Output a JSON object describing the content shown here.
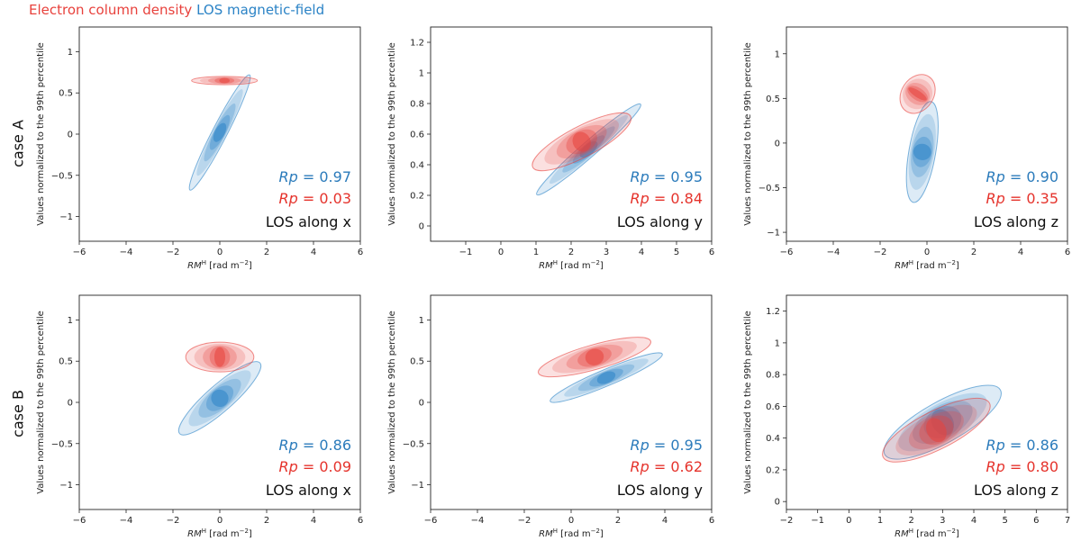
{
  "legend": {
    "electron_label": "Electron column density",
    "los_label": "LOS magnetic-field",
    "electron_color": "#e8413c",
    "los_color": "#2b83c6"
  },
  "rows": {
    "a": "case A",
    "b": "case B"
  },
  "chart_data": [
    {
      "type": "scatter",
      "id": "A-x",
      "row": "case A",
      "xlabel": "RM^H [rad m^-2]",
      "ylabel": "Values normalized to the 99th percentile",
      "xlim": [
        -6,
        6
      ],
      "ylim": [
        -1.3,
        1.3
      ],
      "xticks": [
        -6,
        -4,
        -2,
        0,
        2,
        4,
        6
      ],
      "yticks": [
        -1.0,
        -0.5,
        0.0,
        0.5,
        1.0
      ],
      "annotations": {
        "rp_blue": "Rp = 0.97",
        "rp_red": "Rp = 0.03",
        "los": "LOS along x"
      },
      "series": [
        {
          "name": "LOS magnetic-field",
          "color": "#2b83c6",
          "center": [
            0,
            0.02
          ],
          "slope": 0.55,
          "spread": 0.09,
          "length": 2.4
        },
        {
          "name": "Electron column density",
          "color": "#e8413c",
          "center": [
            0.2,
            0.65
          ],
          "slope": 0.0,
          "spread": 0.05,
          "length": 2.5
        }
      ]
    },
    {
      "type": "scatter",
      "id": "A-y",
      "row": "case A",
      "xlabel": "RM^H [rad m^-2]",
      "ylabel": "Values normalized to the 99th percentile",
      "xlim": [
        -2,
        6
      ],
      "ylim": [
        -0.1,
        1.3
      ],
      "xticks": [
        -1,
        0,
        1,
        2,
        3,
        4,
        5,
        6
      ],
      "yticks": [
        0.0,
        0.2,
        0.4,
        0.6,
        0.8,
        1.0,
        1.2
      ],
      "annotations": {
        "rp_blue": "Rp = 0.95",
        "rp_red": "Rp = 0.84",
        "los": "LOS along y"
      },
      "series": [
        {
          "name": "LOS magnetic-field",
          "color": "#2b83c6",
          "center": [
            2.5,
            0.5
          ],
          "slope": 0.2,
          "spread": 0.05,
          "length": 2.8
        },
        {
          "name": "Electron column density",
          "color": "#e8413c",
          "center": [
            2.3,
            0.55
          ],
          "slope": 0.12,
          "spread": 0.1,
          "length": 2.6
        }
      ]
    },
    {
      "type": "scatter",
      "id": "A-z",
      "row": "case A",
      "xlabel": "RM^H [rad m^-2]",
      "ylabel": "Values normalized to the 99th percentile",
      "xlim": [
        -6,
        6
      ],
      "ylim": [
        -1.1,
        1.3
      ],
      "xticks": [
        -6,
        -4,
        -2,
        0,
        2,
        4,
        6
      ],
      "yticks": [
        -1.0,
        -0.5,
        0.0,
        0.5,
        1.0
      ],
      "annotations": {
        "rp_blue": "Rp = 0.90",
        "rp_red": "Rp = 0.35",
        "los": "LOS along z"
      },
      "series": [
        {
          "name": "LOS magnetic-field",
          "color": "#2b83c6",
          "center": [
            -0.2,
            -0.1
          ],
          "slope": 1.5,
          "spread": 0.15,
          "length": 0.7
        },
        {
          "name": "Electron column density",
          "color": "#e8413c",
          "center": [
            -0.4,
            0.55
          ],
          "slope": 0.4,
          "spread": 0.18,
          "length": 0.8
        }
      ]
    },
    {
      "type": "scatter",
      "id": "B-x",
      "row": "case B",
      "xlabel": "RM^H [rad m^-2]",
      "ylabel": "Values normalized to the 99th percentile",
      "xlim": [
        -6,
        6
      ],
      "ylim": [
        -1.3,
        1.3
      ],
      "xticks": [
        -6,
        -4,
        -2,
        0,
        2,
        4,
        6
      ],
      "yticks": [
        -1.0,
        -0.5,
        0.0,
        0.5,
        1.0
      ],
      "annotations": {
        "rp_blue": "Rp = 0.86",
        "rp_red": "Rp = 0.09",
        "los": "LOS along x"
      },
      "series": [
        {
          "name": "LOS magnetic-field",
          "color": "#2b83c6",
          "center": [
            0,
            0.05
          ],
          "slope": 0.25,
          "spread": 0.16,
          "length": 3.2
        },
        {
          "name": "Electron column density",
          "color": "#e8413c",
          "center": [
            0,
            0.55
          ],
          "slope": 0.0,
          "spread": 0.18,
          "length": 2.6
        }
      ]
    },
    {
      "type": "scatter",
      "id": "B-y",
      "row": "case B",
      "xlabel": "RM^H [rad m^-2]",
      "ylabel": "Values normalized to the 99th percentile",
      "xlim": [
        -6,
        6
      ],
      "ylim": [
        -1.3,
        1.3
      ],
      "xticks": [
        -6,
        -4,
        -2,
        0,
        2,
        4,
        6
      ],
      "yticks": [
        -1.0,
        -0.5,
        0.0,
        0.5,
        1.0
      ],
      "annotations": {
        "rp_blue": "Rp = 0.95",
        "rp_red": "Rp = 0.62",
        "los": "LOS along y"
      },
      "series": [
        {
          "name": "LOS magnetic-field",
          "color": "#2b83c6",
          "center": [
            1.5,
            0.3
          ],
          "slope": 0.12,
          "spread": 0.1,
          "length": 4.5
        },
        {
          "name": "Electron column density",
          "color": "#e8413c",
          "center": [
            1.0,
            0.55
          ],
          "slope": 0.08,
          "spread": 0.15,
          "length": 4.5
        }
      ]
    },
    {
      "type": "scatter",
      "id": "B-z",
      "row": "case B",
      "xlabel": "RM^H [rad m^-2]",
      "ylabel": "Values normalized to the 99th percentile",
      "xlim": [
        -2,
        7
      ],
      "ylim": [
        -0.05,
        1.3
      ],
      "xticks": [
        -2,
        -1,
        0,
        1,
        2,
        3,
        4,
        5,
        6,
        7
      ],
      "yticks": [
        0.0,
        0.2,
        0.4,
        0.6,
        0.8,
        1.0,
        1.2
      ],
      "annotations": {
        "rp_blue": "Rp = 0.86",
        "rp_red": "Rp = 0.80",
        "los": "LOS along z"
      },
      "series": [
        {
          "name": "LOS magnetic-field",
          "color": "#2b83c6",
          "center": [
            3,
            0.5
          ],
          "slope": 0.11,
          "spread": 0.13,
          "length": 3.5
        },
        {
          "name": "Electron column density",
          "color": "#e8413c",
          "center": [
            2.8,
            0.45
          ],
          "slope": 0.1,
          "spread": 0.12,
          "length": 3.2
        }
      ]
    }
  ]
}
